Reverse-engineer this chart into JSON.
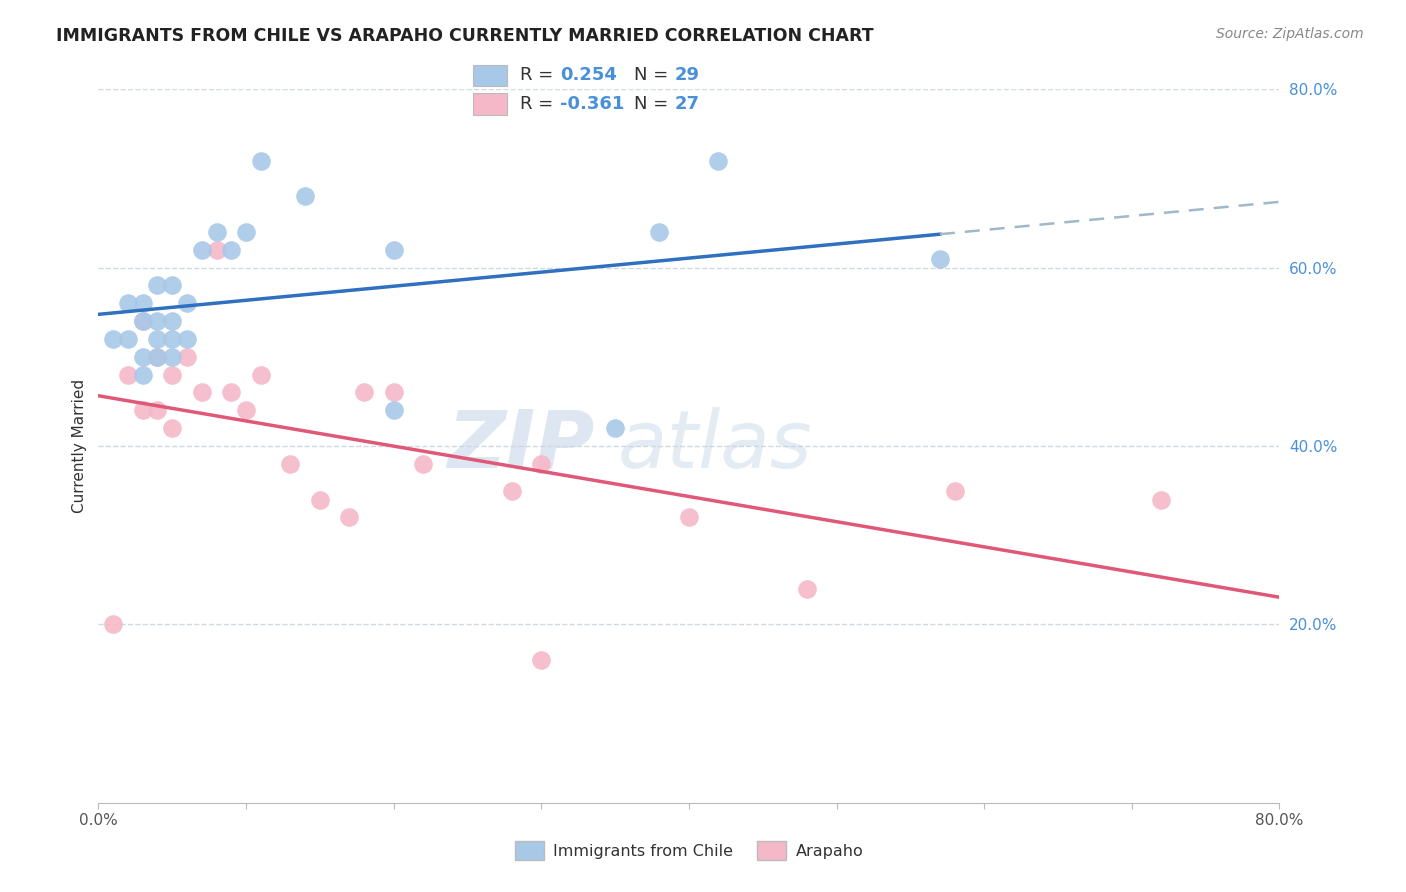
{
  "title": "IMMIGRANTS FROM CHILE VS ARAPAHO CURRENTLY MARRIED CORRELATION CHART",
  "source": "Source: ZipAtlas.com",
  "ylabel": "Currently Married",
  "xlim": [
    0.0,
    0.8
  ],
  "ylim": [
    0.0,
    0.8
  ],
  "yticks": [
    0.2,
    0.4,
    0.6,
    0.8
  ],
  "ytick_labels": [
    "20.0%",
    "40.0%",
    "60.0%",
    "80.0%"
  ],
  "xticks": [
    0.0,
    0.1,
    0.2,
    0.3,
    0.4,
    0.5,
    0.6,
    0.7,
    0.8
  ],
  "xtick_labels_show": {
    "0.0": "0.0%",
    "0.80": "80.0%"
  },
  "blue_R": 0.254,
  "blue_N": 29,
  "pink_R": -0.361,
  "pink_N": 27,
  "blue_color": "#a8c8e8",
  "pink_color": "#f5b8c8",
  "blue_line_color": "#3070c0",
  "pink_line_color": "#e05878",
  "dash_line_color": "#a0b8c8",
  "grid_color": "#d0d8e0",
  "background_color": "#ffffff",
  "blue_scatter_x": [
    0.01,
    0.02,
    0.02,
    0.03,
    0.03,
    0.03,
    0.03,
    0.04,
    0.04,
    0.04,
    0.04,
    0.05,
    0.05,
    0.05,
    0.05,
    0.06,
    0.06,
    0.07,
    0.08,
    0.09,
    0.1,
    0.11,
    0.14,
    0.2,
    0.2,
    0.35,
    0.38,
    0.42,
    0.57
  ],
  "blue_scatter_y": [
    0.52,
    0.52,
    0.56,
    0.48,
    0.5,
    0.54,
    0.56,
    0.5,
    0.52,
    0.54,
    0.58,
    0.5,
    0.52,
    0.54,
    0.58,
    0.52,
    0.56,
    0.62,
    0.64,
    0.62,
    0.64,
    0.72,
    0.68,
    0.44,
    0.62,
    0.42,
    0.64,
    0.72,
    0.61
  ],
  "pink_scatter_x": [
    0.01,
    0.02,
    0.03,
    0.03,
    0.04,
    0.04,
    0.05,
    0.05,
    0.06,
    0.07,
    0.08,
    0.09,
    0.1,
    0.11,
    0.13,
    0.15,
    0.17,
    0.18,
    0.2,
    0.22,
    0.28,
    0.3,
    0.3,
    0.4,
    0.48,
    0.58,
    0.72
  ],
  "pink_scatter_y": [
    0.2,
    0.48,
    0.44,
    0.54,
    0.44,
    0.5,
    0.42,
    0.48,
    0.5,
    0.46,
    0.62,
    0.46,
    0.44,
    0.48,
    0.38,
    0.34,
    0.32,
    0.46,
    0.46,
    0.38,
    0.35,
    0.16,
    0.38,
    0.32,
    0.24,
    0.35,
    0.34
  ],
  "legend_label_blue": "Immigrants from Chile",
  "legend_label_pink": "Arapaho",
  "blue_line_x0": 0.0,
  "blue_line_x1": 0.8,
  "pink_line_x0": 0.0,
  "pink_line_x1": 0.8,
  "dash_line_x0": 0.57,
  "dash_line_x1": 0.8
}
